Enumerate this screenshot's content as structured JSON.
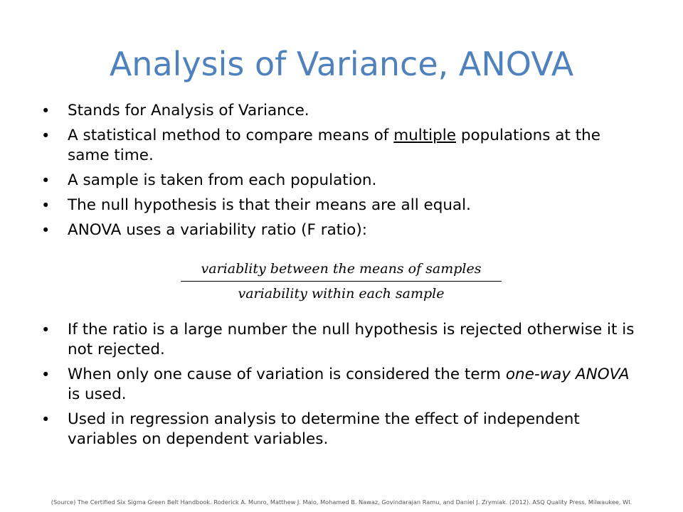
{
  "slide": {
    "title": "Analysis of Variance, ANOVA",
    "bullets_top": [
      {
        "text": "Stands for Analysis of Variance."
      },
      {
        "pre": "A statistical method to compare means of ",
        "underlined": "multiple",
        "post": " populations at the same time."
      },
      {
        "text": "A sample is taken from each population."
      },
      {
        "text": "The null hypothesis is that their means are all equal."
      },
      {
        "text": "ANOVA uses a variability ratio (F ratio):"
      }
    ],
    "formula": {
      "numerator": "variablity between the means of  samples",
      "denominator": "variability within each sample"
    },
    "bullets_bottom": [
      {
        "text": "If the ratio is a large number the null hypothesis is rejected otherwise it is not rejected."
      },
      {
        "pre": "When only one cause of variation is considered the term ",
        "italic": "one-way ANOVA",
        "post": " is used."
      },
      {
        "text": "Used in regression analysis to determine the effect of independent variables on dependent variables."
      }
    ],
    "source": "(Source) The Certified Six Sigma Green Belt Handbook. Roderick A. Munro, Matthew J. Maio, Mohamed B. Nawaz, Govindarajan Ramu, and Daniel J. Zrymiak. (2012). ASQ Quality Press, Milwaukee, WI.",
    "bullet_glyph": "•",
    "colors": {
      "title": "#4f81bd",
      "text": "#000000"
    }
  }
}
